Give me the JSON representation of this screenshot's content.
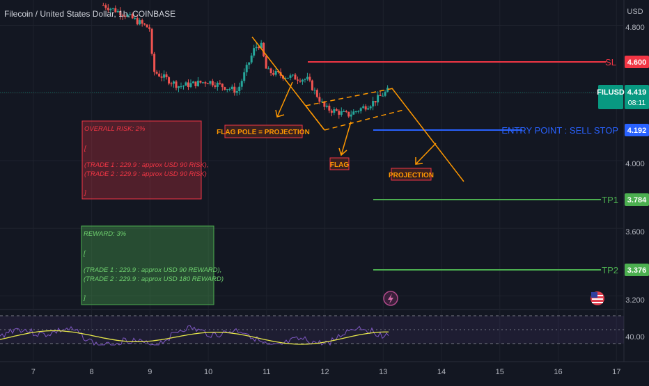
{
  "header": {
    "title": "Filecoin / United States Dollar, 1h, COINBASE"
  },
  "price_axis": {
    "currency": "USD",
    "ticks": [
      "4.800",
      "4.000",
      "3.600",
      "3.200"
    ]
  },
  "rsi_axis": {
    "ticks": [
      "40.00"
    ]
  },
  "time_axis": {
    "ticks": [
      "7",
      "8",
      "9",
      "10",
      "11",
      "12",
      "13",
      "14",
      "15",
      "16",
      "17"
    ]
  },
  "levels": {
    "sl": {
      "label": "SL",
      "value": "4.600",
      "color": "#f23645"
    },
    "current": {
      "symbol": "FILUSD",
      "value": "4.419",
      "countdown": "08:11",
      "color": "#089981"
    },
    "entry": {
      "label": "ENTRY POINT : SELL STOP",
      "value": "4.192",
      "color": "#2962ff"
    },
    "tp1": {
      "label": "TP1",
      "value": "3.784",
      "color": "#4caf50"
    },
    "tp2": {
      "label": "TP2",
      "value": "3.376",
      "color": "#4caf50"
    }
  },
  "annotations": {
    "flag_pole": "FLAG POLE = PROJECTION",
    "flag": "FLAG",
    "projection": "PROJECTION"
  },
  "risk_box": {
    "title": "OVERALL RISK: 2%",
    "open": "[",
    "line1": "(TRADE 1 : 229.9 : approx USD 90 RISK),",
    "line2": "(TRADE 2 : 229.9 : approx USD 90 RISK)",
    "close": "]"
  },
  "reward_box": {
    "title": "REWARD: 3%",
    "open": "[",
    "line1": "(TRADE 1 : 229.9 : approx USD 90 REWARD),",
    "line2": "(TRADE 2 : 229.9 : approx USD 180 REWARD)",
    "close": "]"
  },
  "chart_data": {
    "type": "line",
    "x": [
      8.2,
      8.6,
      9.0,
      9.05,
      9.5,
      10.0,
      10.5,
      10.8,
      10.9,
      11.0,
      11.3,
      11.7,
      12.0,
      12.4,
      12.8,
      13.1
    ],
    "series": [
      {
        "values": [
          4.92,
          4.86,
          4.78,
          4.53,
          4.44,
          4.47,
          4.41,
          4.67,
          4.69,
          4.53,
          4.5,
          4.48,
          4.31,
          4.27,
          4.34,
          4.42
        ]
      }
    ],
    "ylim": [
      3.12,
      4.95
    ],
    "xlim": [
      6.5,
      17.2
    ],
    "rsi_reference": 40.0
  },
  "colors": {
    "up": "#26a69a",
    "down": "#ef5350",
    "annotation": "#ff9800",
    "rsi_line": "#7e57c2",
    "rsi_ma": "#e8e84a"
  }
}
